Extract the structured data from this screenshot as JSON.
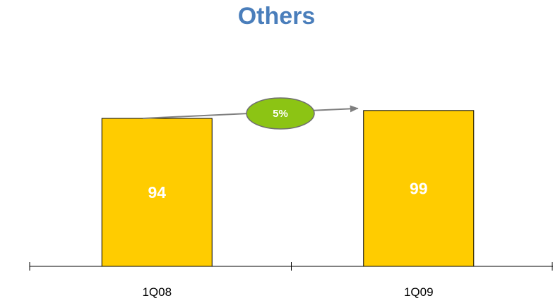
{
  "chart_data": {
    "type": "bar",
    "title": "Others",
    "categories": [
      "1Q08",
      "1Q09"
    ],
    "values": [
      94,
      99
    ],
    "data_labels": [
      "94",
      "99"
    ],
    "growth_annotation": "5%",
    "xlabel": "",
    "ylabel": "",
    "grid": false,
    "legend": "none"
  },
  "colors": {
    "title": "#4a7ebb",
    "bar_fill": "#ffcc00",
    "bar_stroke": "#000000",
    "bubble_fill": "#8cc414",
    "bubble_stroke": "#6f6f6f",
    "arrow": "#7f7f7f",
    "axis": "#000000"
  }
}
